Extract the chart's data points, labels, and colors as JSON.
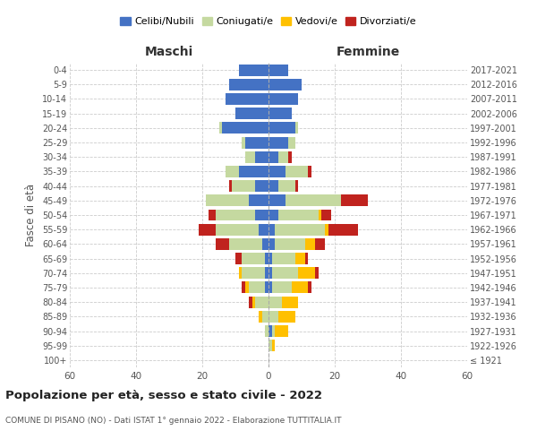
{
  "age_groups": [
    "100+",
    "95-99",
    "90-94",
    "85-89",
    "80-84",
    "75-79",
    "70-74",
    "65-69",
    "60-64",
    "55-59",
    "50-54",
    "45-49",
    "40-44",
    "35-39",
    "30-34",
    "25-29",
    "20-24",
    "15-19",
    "10-14",
    "5-9",
    "0-4"
  ],
  "birth_years": [
    "≤ 1921",
    "1922-1926",
    "1927-1931",
    "1932-1936",
    "1937-1941",
    "1942-1946",
    "1947-1951",
    "1952-1956",
    "1957-1961",
    "1962-1966",
    "1967-1971",
    "1972-1976",
    "1977-1981",
    "1982-1986",
    "1987-1991",
    "1992-1996",
    "1997-2001",
    "2002-2006",
    "2007-2011",
    "2012-2016",
    "2017-2021"
  ],
  "colors": {
    "celibi": "#4472c4",
    "coniugati": "#c5d9a0",
    "vedovi": "#ffc000",
    "divorziati": "#c0231e"
  },
  "maschi": {
    "celibi": [
      0,
      0,
      0,
      0,
      0,
      1,
      1,
      1,
      2,
      3,
      4,
      6,
      4,
      9,
      4,
      7,
      14,
      10,
      13,
      12,
      9
    ],
    "coniugati": [
      0,
      0,
      1,
      2,
      4,
      5,
      7,
      7,
      10,
      13,
      12,
      13,
      7,
      4,
      3,
      1,
      1,
      0,
      0,
      0,
      0
    ],
    "vedovi": [
      0,
      0,
      0,
      1,
      1,
      1,
      1,
      0,
      0,
      0,
      0,
      0,
      0,
      0,
      0,
      0,
      0,
      0,
      0,
      0,
      0
    ],
    "divorziati": [
      0,
      0,
      0,
      0,
      1,
      1,
      0,
      2,
      4,
      5,
      2,
      0,
      1,
      0,
      0,
      0,
      0,
      0,
      0,
      0,
      0
    ]
  },
  "femmine": {
    "celibi": [
      0,
      0,
      1,
      0,
      0,
      1,
      1,
      1,
      2,
      2,
      3,
      5,
      3,
      5,
      3,
      6,
      8,
      7,
      9,
      10,
      6
    ],
    "coniugati": [
      0,
      1,
      1,
      3,
      4,
      6,
      8,
      7,
      9,
      15,
      12,
      17,
      5,
      7,
      3,
      2,
      1,
      0,
      0,
      0,
      0
    ],
    "vedovi": [
      0,
      1,
      4,
      5,
      5,
      5,
      5,
      3,
      3,
      1,
      1,
      0,
      0,
      0,
      0,
      0,
      0,
      0,
      0,
      0,
      0
    ],
    "divorziati": [
      0,
      0,
      0,
      0,
      0,
      1,
      1,
      1,
      3,
      9,
      3,
      8,
      1,
      1,
      1,
      0,
      0,
      0,
      0,
      0,
      0
    ]
  },
  "title": "Popolazione per età, sesso e stato civile - 2022",
  "subtitle": "COMUNE DI PISANO (NO) - Dati ISTAT 1° gennaio 2022 - Elaborazione TUTTITALIA.IT",
  "ylabel_left": "Fasce di età",
  "xlabel_left": "Maschi",
  "xlabel_right": "Femmine",
  "xlim": 60,
  "legend_labels": [
    "Celibi/Nubili",
    "Coniugati/e",
    "Vedovi/e",
    "Divorziati/e"
  ],
  "bg_color": "#ffffff",
  "grid_color": "#cccccc"
}
